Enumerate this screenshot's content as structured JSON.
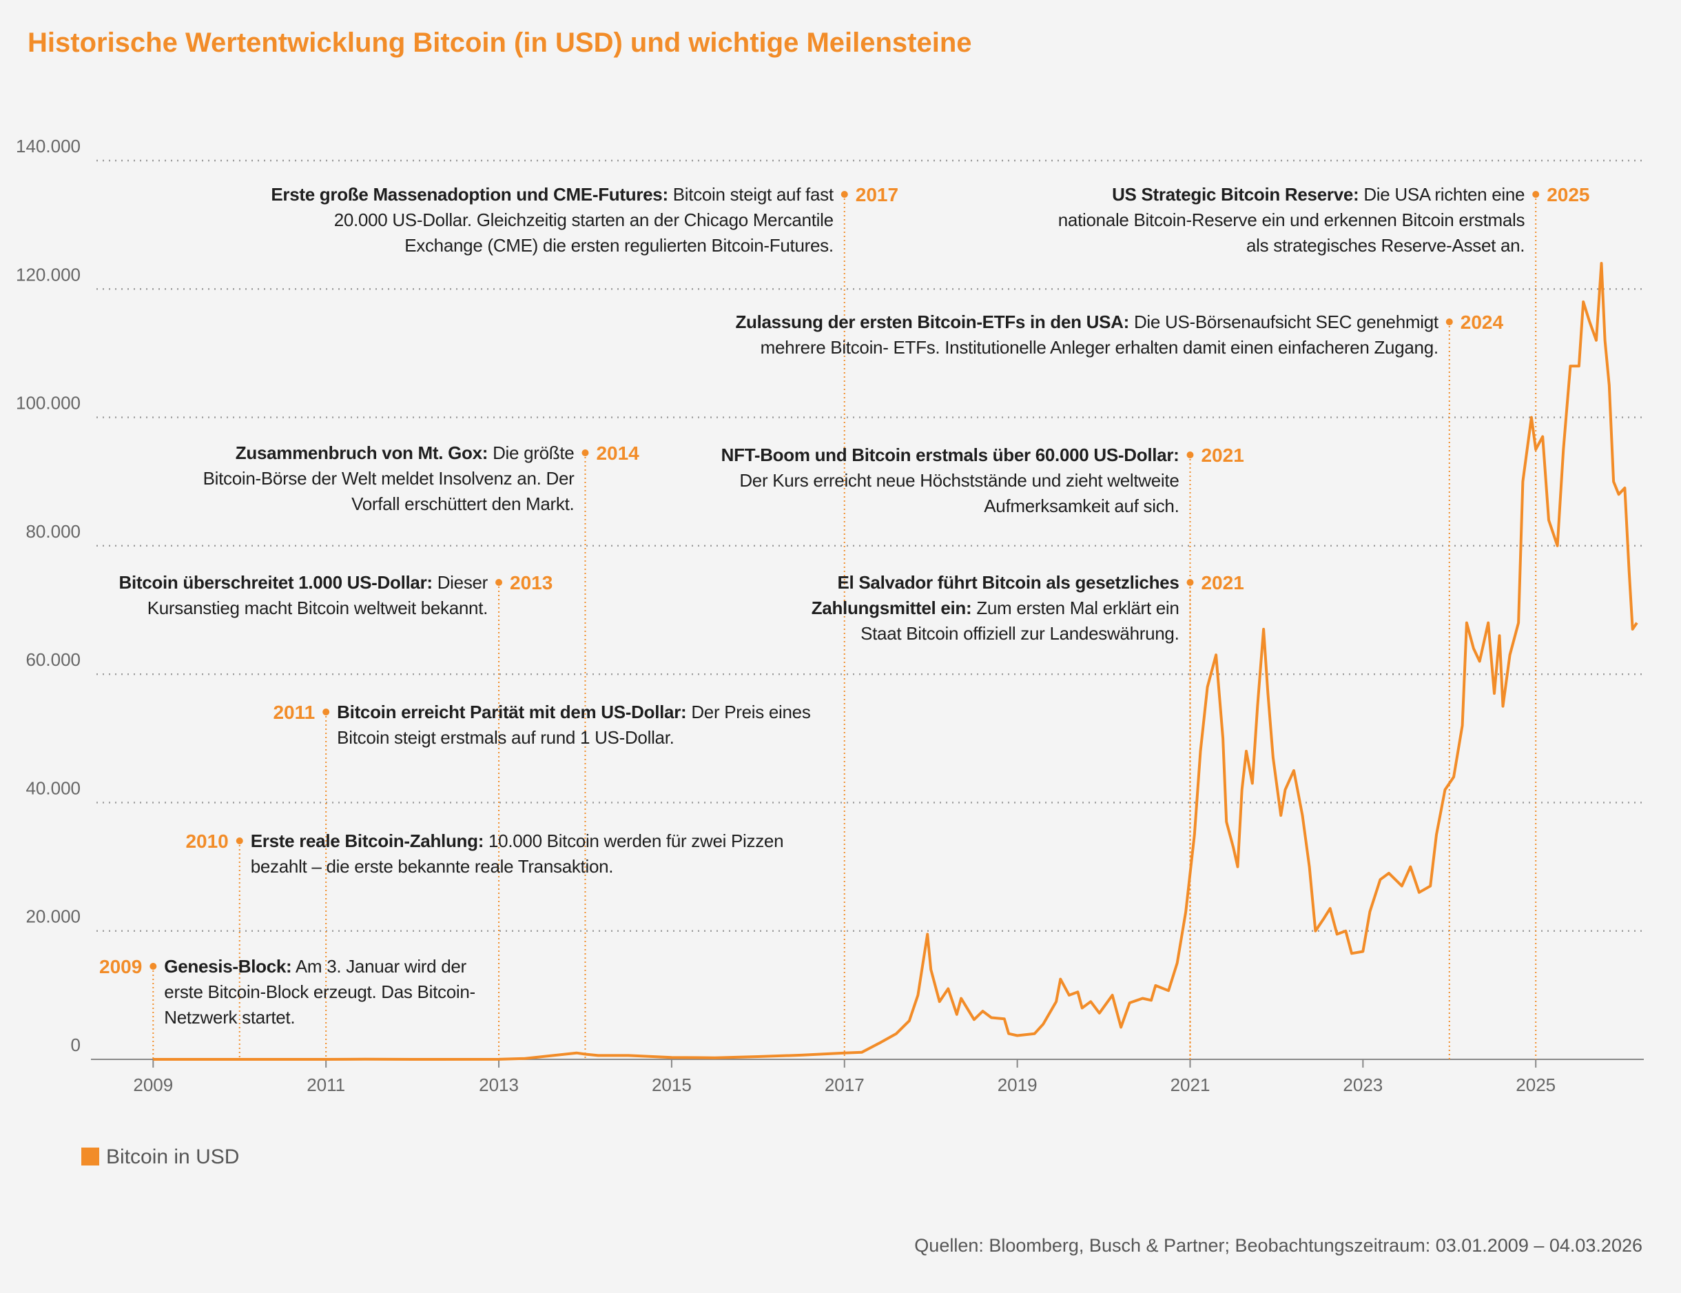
{
  "chart_data": {
    "type": "line",
    "title": "Historische Wertentwicklung Bitcoin (in USD) und wichtige Meilensteine",
    "source": "Quellen: Bloomberg, Busch & Partner; Beobachtungszeitraum: 03.01.2009 – 04.03.2026",
    "xlim": [
      2008.28,
      2026.25
    ],
    "xticks": [
      2009,
      2011,
      2013,
      2015,
      2017,
      2019,
      2021,
      2023,
      2025
    ],
    "ylim": [
      0,
      140000
    ],
    "yticks": [
      0,
      {
        "value": 20000,
        "label": "20.000"
      },
      {
        "value": 40000,
        "label": "40.000"
      },
      {
        "value": 60000,
        "label": "60.000"
      },
      {
        "value": 80000,
        "label": "80.000"
      },
      {
        "value": 100000,
        "label": "100.000"
      },
      {
        "value": 120000,
        "label": "120.000"
      },
      {
        "value": 140000,
        "label": "140.000"
      }
    ],
    "grid": true,
    "x": [
      2009.0,
      2010.5,
      2011.0,
      2011.45,
      2012.0,
      2013.0,
      2013.3,
      2013.9,
      2014.0,
      2014.15,
      2014.5,
      2015.0,
      2015.5,
      2016.0,
      2016.5,
      2017.0,
      2017.2,
      2017.4,
      2017.6,
      2017.75,
      2017.85,
      2017.96,
      2018.0,
      2018.1,
      2018.2,
      2018.3,
      2018.35,
      2018.5,
      2018.6,
      2018.7,
      2018.85,
      2018.9,
      2019.0,
      2019.2,
      2019.3,
      2019.45,
      2019.5,
      2019.6,
      2019.7,
      2019.75,
      2019.85,
      2019.95,
      2020.1,
      2020.2,
      2020.3,
      2020.45,
      2020.55,
      2020.6,
      2020.75,
      2020.85,
      2020.95,
      2021.05,
      2021.12,
      2021.2,
      2021.3,
      2021.38,
      2021.42,
      2021.5,
      2021.55,
      2021.6,
      2021.65,
      2021.72,
      2021.78,
      2021.85,
      2021.9,
      2021.96,
      2022.05,
      2022.1,
      2022.2,
      2022.3,
      2022.38,
      2022.45,
      2022.55,
      2022.62,
      2022.7,
      2022.8,
      2022.87,
      2023.0,
      2023.08,
      2023.2,
      2023.3,
      2023.45,
      2023.55,
      2023.65,
      2023.78,
      2023.85,
      2023.95,
      2024.05,
      2024.15,
      2024.2,
      2024.28,
      2024.35,
      2024.45,
      2024.52,
      2024.58,
      2024.62,
      2024.7,
      2024.8,
      2024.85,
      2024.95,
      2025.0,
      2025.08,
      2025.15,
      2025.25,
      2025.32,
      2025.4,
      2025.5,
      2025.55,
      2025.62,
      2025.7,
      2025.76,
      2025.8,
      2025.85,
      2025.9,
      2025.96,
      2026.03,
      2026.08,
      2026.12,
      2026.17
    ],
    "series": [
      {
        "name": "Bitcoin in USD",
        "color": "#f28c28",
        "values": [
          0,
          0.05,
          0.3,
          17,
          5,
          13,
          130,
          1000,
          800,
          600,
          600,
          300,
          250,
          430,
          650,
          1000,
          1100,
          2500,
          4000,
          6000,
          10000,
          19500,
          14000,
          9000,
          11000,
          7000,
          9500,
          6200,
          7500,
          6500,
          6300,
          4000,
          3700,
          4000,
          5500,
          9000,
          12500,
          10000,
          10500,
          8000,
          9000,
          7200,
          10000,
          5000,
          8800,
          9500,
          9200,
          11500,
          10700,
          15000,
          23000,
          35000,
          48000,
          58000,
          63000,
          50000,
          37000,
          33000,
          30000,
          42000,
          48000,
          43000,
          55000,
          67000,
          57000,
          47000,
          38000,
          42000,
          45000,
          38000,
          30000,
          20000,
          22000,
          23500,
          19500,
          20000,
          16500,
          16800,
          23000,
          28000,
          29000,
          27000,
          30000,
          26000,
          27000,
          35000,
          42000,
          44000,
          52000,
          68000,
          64000,
          62000,
          68000,
          57000,
          66000,
          55000,
          63000,
          68000,
          90000,
          100000,
          95000,
          97000,
          84000,
          80000,
          95000,
          108000,
          108000,
          118000,
          115000,
          112000,
          124000,
          112000,
          105000,
          90000,
          88000,
          89000,
          76000,
          67000,
          68000
        ]
      }
    ],
    "annotations": [
      {
        "year": 2009,
        "title": "Genesis-Block:",
        "text": "Am 3. Januar wird der erste Bitcoin-Block erzeugt. Das Bitcoin-Netzwerk startet."
      },
      {
        "year": 2010,
        "title": "Erste reale Bitcoin-Zahlung:",
        "text": "10.000 Bitcoin werden für zwei Pizzen bezahlt – die erste bekannte reale Transaktion."
      },
      {
        "year": 2011,
        "title": "Bitcoin erreicht Parität mit dem US-Dollar:",
        "text": "Der Preis eines Bitcoin steigt erstmals auf rund 1 US-Dollar."
      },
      {
        "year": 2013,
        "title": "Bitcoin überschreitet 1.000 US-Dollar:",
        "text": "Dieser Kursanstieg macht Bitcoin weltweit bekannt."
      },
      {
        "year": 2014,
        "title": "Zusammenbruch von Mt. Gox:",
        "text": "Die größte Bitcoin-Börse der Welt meldet Insolvenz an. Der Vorfall erschüttert den Markt."
      },
      {
        "year": 2017,
        "title": "Erste große Massenadoption und CME-Futures:",
        "text": "Bitcoin steigt auf fast 20.000 US-Dollar. Gleichzeitig starten an der Chicago Mercantile Exchange (CME) die ersten regulierten Bitcoin-Futures."
      },
      {
        "year": 2021,
        "title": "NFT-Boom und Bitcoin erstmals über 60.000 US-Dollar:",
        "text": "Der Kurs erreicht neue Höchststände und zieht weltweite Aufmerksamkeit auf sich."
      },
      {
        "year": 2021,
        "title": "El Salvador führt Bitcoin als gesetzliches Zahlungsmittel ein:",
        "text": "Zum ersten Mal erklärt ein Staat Bitcoin offiziell zur Landeswährung."
      },
      {
        "year": 2024,
        "title": "Zulassung der ersten Bitcoin-ETFs in den USA:",
        "text": "Die US-Börsenaufsicht SEC genehmigt mehrere Bitcoin- ETFs. Institutionelle Anleger erhalten damit einen einfacheren Zugang."
      },
      {
        "year": 2025,
        "title": "US Strategic Bitcoin Reserve:",
        "text": "Die USA richten eine nationale Bitcoin-Reserve ein und erkennen Bitcoin erstmals als strategisches Reserve-Asset an."
      }
    ]
  }
}
